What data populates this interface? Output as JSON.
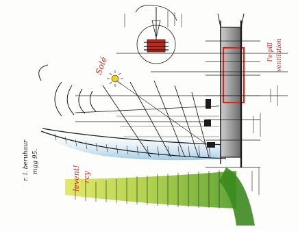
{
  "sketch": {
    "colors": {
      "ink": "#1b1b1b",
      "red": "#d9261c",
      "sun": "#f2d21b",
      "sky_blue": "#a9cfe6",
      "grass_green": "#7cb32b",
      "grass_yellow": "#d8e04a",
      "shade": "#8a8a8a"
    },
    "labels": {
      "signature_top": "r. l. beruhaur",
      "signature_bottom": "mgg 95.",
      "sun_word": "Solé",
      "red_column_line1": "l'e pill",
      "red_column_line2": "ventilation",
      "red_bottom_line1": "levent!",
      "red_bottom_line2": "rcy"
    },
    "icons": [
      "sun-icon",
      "ventilator-icon",
      "plant-icon"
    ]
  }
}
